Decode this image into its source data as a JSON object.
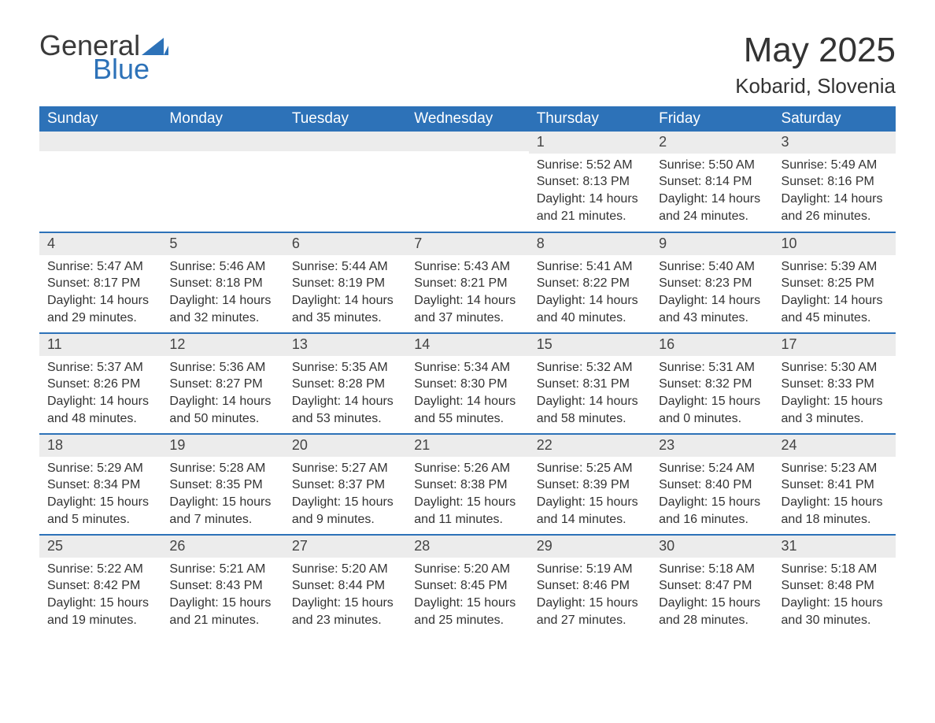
{
  "brand": {
    "part1": "General",
    "part2": "Blue",
    "logo_color": "#2d72b8",
    "text_color": "#3a3a3a"
  },
  "title": "May 2025",
  "location": "Kobarid, Slovenia",
  "colors": {
    "header_bg": "#2d72b8",
    "header_text": "#ffffff",
    "row_divider": "#2d72b8",
    "daynum_bg": "#ececec",
    "body_text": "#333333",
    "page_bg": "#ffffff"
  },
  "typography": {
    "font_family": "Segoe UI, Arial, Helvetica, sans-serif",
    "title_fontsize": 44,
    "location_fontsize": 26,
    "header_fontsize": 19,
    "daynum_fontsize": 18,
    "body_fontsize": 16
  },
  "weekdays": [
    "Sunday",
    "Monday",
    "Tuesday",
    "Wednesday",
    "Thursday",
    "Friday",
    "Saturday"
  ],
  "first_weekday_index": 4,
  "weeks": [
    [
      null,
      null,
      null,
      null,
      {
        "n": "1",
        "sunrise": "Sunrise: 5:52 AM",
        "sunset": "Sunset: 8:13 PM",
        "daylight": "Daylight: 14 hours and 21 minutes."
      },
      {
        "n": "2",
        "sunrise": "Sunrise: 5:50 AM",
        "sunset": "Sunset: 8:14 PM",
        "daylight": "Daylight: 14 hours and 24 minutes."
      },
      {
        "n": "3",
        "sunrise": "Sunrise: 5:49 AM",
        "sunset": "Sunset: 8:16 PM",
        "daylight": "Daylight: 14 hours and 26 minutes."
      }
    ],
    [
      {
        "n": "4",
        "sunrise": "Sunrise: 5:47 AM",
        "sunset": "Sunset: 8:17 PM",
        "daylight": "Daylight: 14 hours and 29 minutes."
      },
      {
        "n": "5",
        "sunrise": "Sunrise: 5:46 AM",
        "sunset": "Sunset: 8:18 PM",
        "daylight": "Daylight: 14 hours and 32 minutes."
      },
      {
        "n": "6",
        "sunrise": "Sunrise: 5:44 AM",
        "sunset": "Sunset: 8:19 PM",
        "daylight": "Daylight: 14 hours and 35 minutes."
      },
      {
        "n": "7",
        "sunrise": "Sunrise: 5:43 AM",
        "sunset": "Sunset: 8:21 PM",
        "daylight": "Daylight: 14 hours and 37 minutes."
      },
      {
        "n": "8",
        "sunrise": "Sunrise: 5:41 AM",
        "sunset": "Sunset: 8:22 PM",
        "daylight": "Daylight: 14 hours and 40 minutes."
      },
      {
        "n": "9",
        "sunrise": "Sunrise: 5:40 AM",
        "sunset": "Sunset: 8:23 PM",
        "daylight": "Daylight: 14 hours and 43 minutes."
      },
      {
        "n": "10",
        "sunrise": "Sunrise: 5:39 AM",
        "sunset": "Sunset: 8:25 PM",
        "daylight": "Daylight: 14 hours and 45 minutes."
      }
    ],
    [
      {
        "n": "11",
        "sunrise": "Sunrise: 5:37 AM",
        "sunset": "Sunset: 8:26 PM",
        "daylight": "Daylight: 14 hours and 48 minutes."
      },
      {
        "n": "12",
        "sunrise": "Sunrise: 5:36 AM",
        "sunset": "Sunset: 8:27 PM",
        "daylight": "Daylight: 14 hours and 50 minutes."
      },
      {
        "n": "13",
        "sunrise": "Sunrise: 5:35 AM",
        "sunset": "Sunset: 8:28 PM",
        "daylight": "Daylight: 14 hours and 53 minutes."
      },
      {
        "n": "14",
        "sunrise": "Sunrise: 5:34 AM",
        "sunset": "Sunset: 8:30 PM",
        "daylight": "Daylight: 14 hours and 55 minutes."
      },
      {
        "n": "15",
        "sunrise": "Sunrise: 5:32 AM",
        "sunset": "Sunset: 8:31 PM",
        "daylight": "Daylight: 14 hours and 58 minutes."
      },
      {
        "n": "16",
        "sunrise": "Sunrise: 5:31 AM",
        "sunset": "Sunset: 8:32 PM",
        "daylight": "Daylight: 15 hours and 0 minutes."
      },
      {
        "n": "17",
        "sunrise": "Sunrise: 5:30 AM",
        "sunset": "Sunset: 8:33 PM",
        "daylight": "Daylight: 15 hours and 3 minutes."
      }
    ],
    [
      {
        "n": "18",
        "sunrise": "Sunrise: 5:29 AM",
        "sunset": "Sunset: 8:34 PM",
        "daylight": "Daylight: 15 hours and 5 minutes."
      },
      {
        "n": "19",
        "sunrise": "Sunrise: 5:28 AM",
        "sunset": "Sunset: 8:35 PM",
        "daylight": "Daylight: 15 hours and 7 minutes."
      },
      {
        "n": "20",
        "sunrise": "Sunrise: 5:27 AM",
        "sunset": "Sunset: 8:37 PM",
        "daylight": "Daylight: 15 hours and 9 minutes."
      },
      {
        "n": "21",
        "sunrise": "Sunrise: 5:26 AM",
        "sunset": "Sunset: 8:38 PM",
        "daylight": "Daylight: 15 hours and 11 minutes."
      },
      {
        "n": "22",
        "sunrise": "Sunrise: 5:25 AM",
        "sunset": "Sunset: 8:39 PM",
        "daylight": "Daylight: 15 hours and 14 minutes."
      },
      {
        "n": "23",
        "sunrise": "Sunrise: 5:24 AM",
        "sunset": "Sunset: 8:40 PM",
        "daylight": "Daylight: 15 hours and 16 minutes."
      },
      {
        "n": "24",
        "sunrise": "Sunrise: 5:23 AM",
        "sunset": "Sunset: 8:41 PM",
        "daylight": "Daylight: 15 hours and 18 minutes."
      }
    ],
    [
      {
        "n": "25",
        "sunrise": "Sunrise: 5:22 AM",
        "sunset": "Sunset: 8:42 PM",
        "daylight": "Daylight: 15 hours and 19 minutes."
      },
      {
        "n": "26",
        "sunrise": "Sunrise: 5:21 AM",
        "sunset": "Sunset: 8:43 PM",
        "daylight": "Daylight: 15 hours and 21 minutes."
      },
      {
        "n": "27",
        "sunrise": "Sunrise: 5:20 AM",
        "sunset": "Sunset: 8:44 PM",
        "daylight": "Daylight: 15 hours and 23 minutes."
      },
      {
        "n": "28",
        "sunrise": "Sunrise: 5:20 AM",
        "sunset": "Sunset: 8:45 PM",
        "daylight": "Daylight: 15 hours and 25 minutes."
      },
      {
        "n": "29",
        "sunrise": "Sunrise: 5:19 AM",
        "sunset": "Sunset: 8:46 PM",
        "daylight": "Daylight: 15 hours and 27 minutes."
      },
      {
        "n": "30",
        "sunrise": "Sunrise: 5:18 AM",
        "sunset": "Sunset: 8:47 PM",
        "daylight": "Daylight: 15 hours and 28 minutes."
      },
      {
        "n": "31",
        "sunrise": "Sunrise: 5:18 AM",
        "sunset": "Sunset: 8:48 PM",
        "daylight": "Daylight: 15 hours and 30 minutes."
      }
    ]
  ]
}
